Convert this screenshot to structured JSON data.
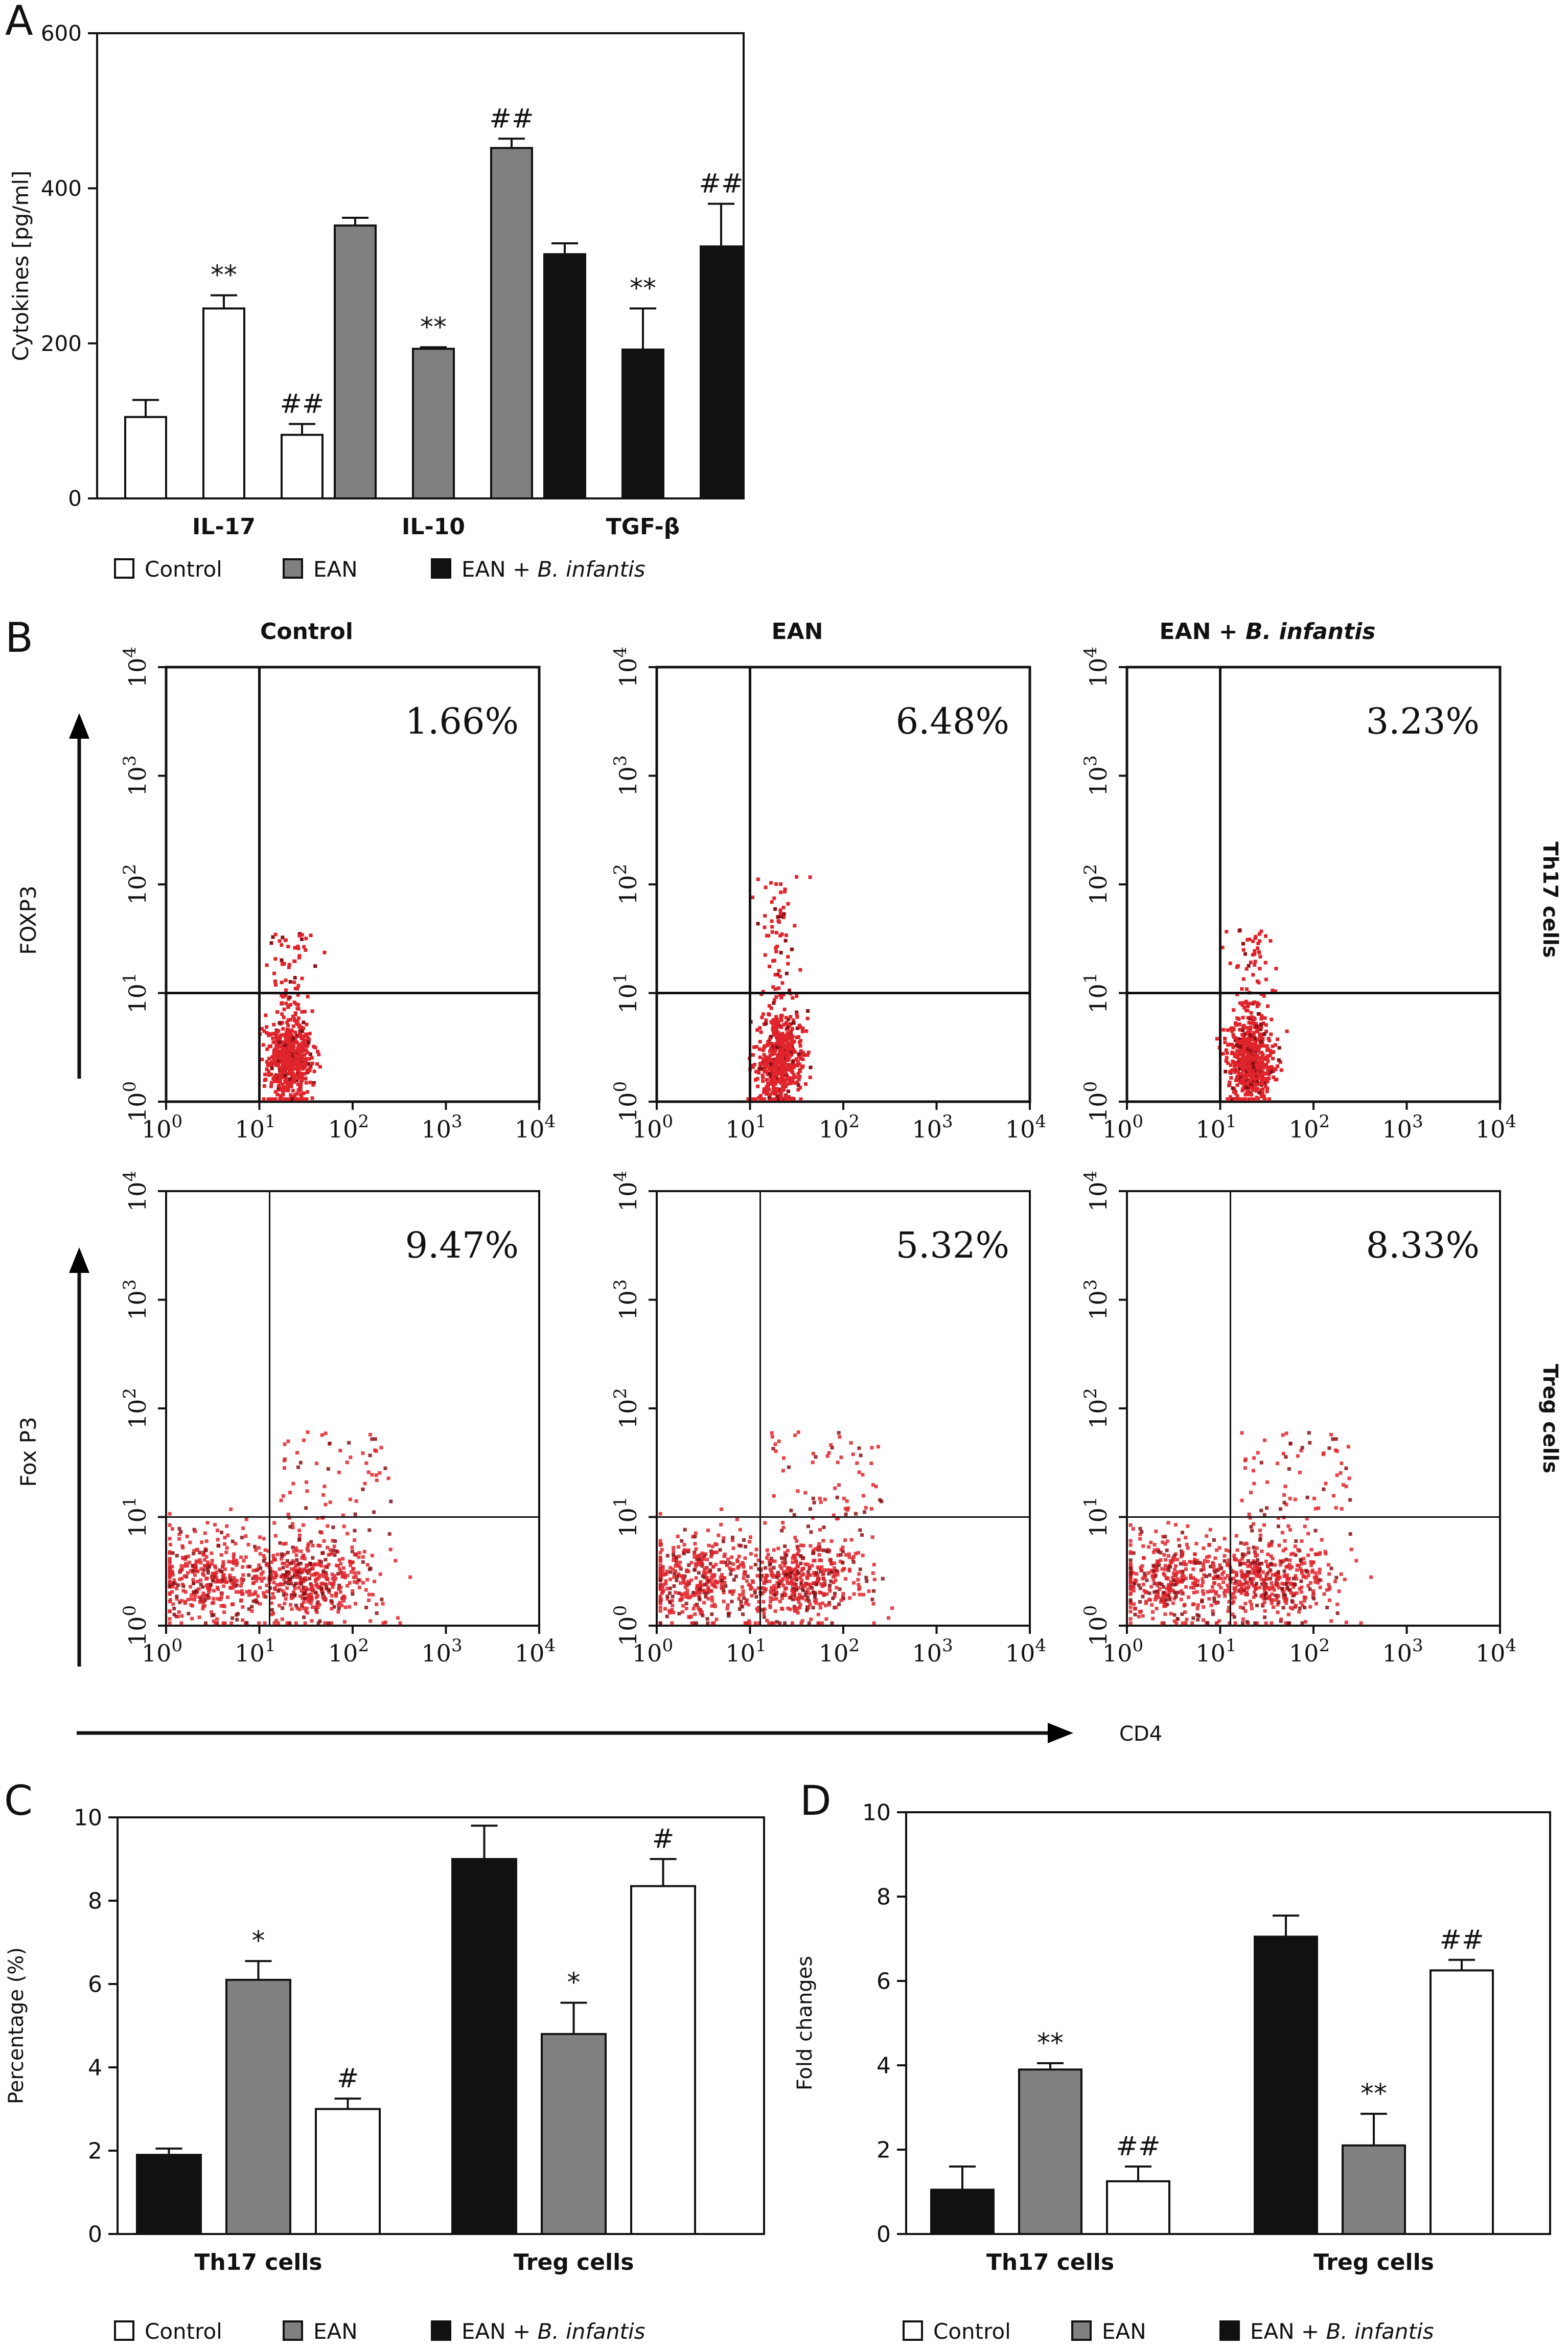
{
  "panels": {
    "A": "A",
    "B": "B",
    "C": "C",
    "D": "D"
  },
  "colors": {
    "control": "#ffffff",
    "ean": "#808080",
    "treated": "#111111",
    "dots": "#e0242c",
    "dots_dark": "#8a0f14",
    "axis": "#111111"
  },
  "legend": {
    "control": "Control",
    "ean": "EAN",
    "treated_prefix": "EAN + ",
    "treated_italic": "B. infantis"
  },
  "chart_data": [
    {
      "id": "A",
      "type": "bar",
      "ylabel": "Cytokines [pg/ml]",
      "ylim": [
        0,
        600
      ],
      "yticks": [
        "0",
        "200",
        "400",
        "600"
      ],
      "categories": [
        "IL-17",
        "IL-10",
        "TGF-β"
      ],
      "groups": [
        {
          "category": "IL-17",
          "color_key": "control",
          "bars": [
            {
              "value": 105,
              "err": 22,
              "mark": ""
            },
            {
              "value": 245,
              "err": 17,
              "mark": "**"
            },
            {
              "value": 82,
              "err": 14,
              "mark": "##"
            }
          ]
        },
        {
          "category": "IL-10",
          "color_key": "ean",
          "bars": [
            {
              "value": 352,
              "err": 10,
              "mark": ""
            },
            {
              "value": 193,
              "err": 2,
              "mark": "**"
            },
            {
              "value": 452,
              "err": 12,
              "mark": "##"
            }
          ]
        },
        {
          "category": "TGF-β",
          "color_key": "treated",
          "bars": [
            {
              "value": 315,
              "err": 14,
              "mark": ""
            },
            {
              "value": 192,
              "err": 53,
              "mark": "**"
            },
            {
              "value": 325,
              "err": 55,
              "mark": "##"
            }
          ]
        }
      ]
    },
    {
      "id": "B",
      "type": "scatter",
      "columns": [
        "Control",
        "EAN",
        "EAN + B. infantis"
      ],
      "rows": [
        "Th17 cells",
        "Treg cells"
      ],
      "ylabels": [
        "FOXP3",
        "Fox P3"
      ],
      "xlabel": "CD4",
      "ticks": [
        "0",
        "1",
        "2",
        "3",
        "4"
      ],
      "tick_base": "10",
      "percentages": [
        [
          "1.66%",
          "6.48%",
          "3.23%"
        ],
        [
          "9.47%",
          "5.32%",
          "8.33%"
        ]
      ],
      "gate_log": [
        1.0,
        1.0
      ],
      "cluster_log": {
        "x": 1.3,
        "y": 0.4
      }
    },
    {
      "id": "C",
      "type": "bar",
      "ylabel": "Percentage (%)",
      "ylim": [
        0,
        10
      ],
      "yticks": [
        "0",
        "2",
        "4",
        "6",
        "8",
        "10"
      ],
      "categories": [
        "Th17 cells",
        "Treg cells"
      ],
      "groups": [
        {
          "category": "Th17 cells",
          "bars": [
            {
              "series": "treated",
              "value": 1.9,
              "err": 0.15,
              "mark": ""
            },
            {
              "series": "ean",
              "value": 6.1,
              "err": 0.45,
              "mark": "*"
            },
            {
              "series": "control",
              "value": 3.0,
              "err": 0.25,
              "mark": "#"
            }
          ]
        },
        {
          "category": "Treg cells",
          "bars": [
            {
              "series": "treated",
              "value": 9.0,
              "err": 0.8,
              "mark": ""
            },
            {
              "series": "ean",
              "value": 4.8,
              "err": 0.75,
              "mark": "*"
            },
            {
              "series": "control",
              "value": 8.35,
              "err": 0.65,
              "mark": "#"
            }
          ]
        }
      ]
    },
    {
      "id": "D",
      "type": "bar",
      "ylabel": "Fold changes",
      "ylim": [
        0,
        10
      ],
      "yticks": [
        "0",
        "2",
        "4",
        "6",
        "8",
        "10"
      ],
      "categories": [
        "Th17 cells",
        "Treg cells"
      ],
      "groups": [
        {
          "category": "Th17 cells",
          "bars": [
            {
              "series": "treated",
              "value": 1.05,
              "err": 0.55,
              "mark": ""
            },
            {
              "series": "ean",
              "value": 3.9,
              "err": 0.15,
              "mark": "**"
            },
            {
              "series": "control",
              "value": 1.25,
              "err": 0.35,
              "mark": "##"
            }
          ]
        },
        {
          "category": "Treg cells",
          "bars": [
            {
              "series": "treated",
              "value": 7.05,
              "err": 0.5,
              "mark": ""
            },
            {
              "series": "ean",
              "value": 2.1,
              "err": 0.75,
              "mark": "**"
            },
            {
              "series": "control",
              "value": 6.25,
              "err": 0.25,
              "mark": "##"
            }
          ]
        }
      ]
    }
  ]
}
